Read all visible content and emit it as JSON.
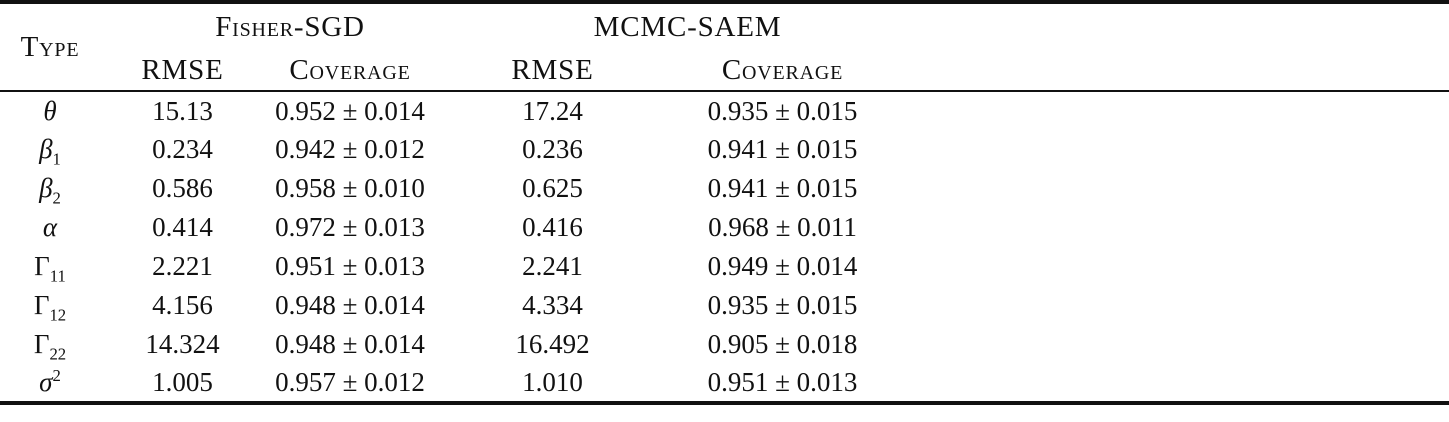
{
  "page": {
    "background": "#ffffff",
    "text_color": "#111111",
    "rule_color": "#111111"
  },
  "table": {
    "header": {
      "type_label": "Type",
      "groups": [
        {
          "label": "Fisher-SGD"
        },
        {
          "label": "MCMC-SAEM"
        }
      ],
      "sub_headers": [
        "RMSE",
        "Coverage",
        "RMSE",
        "Coverage"
      ]
    },
    "rows": [
      {
        "param": {
          "base": "θ",
          "sub": "",
          "sup": ""
        },
        "fisher_rmse": "15.13",
        "fisher_coverage": "0.952 ± 0.014",
        "mcmc_rmse": "17.24",
        "mcmc_coverage": "0.935 ± 0.015"
      },
      {
        "param": {
          "base": "β",
          "sub": "1",
          "sup": ""
        },
        "fisher_rmse": "0.234",
        "fisher_coverage": "0.942 ± 0.012",
        "mcmc_rmse": "0.236",
        "mcmc_coverage": "0.941 ± 0.015"
      },
      {
        "param": {
          "base": "β",
          "sub": "2",
          "sup": ""
        },
        "fisher_rmse": "0.586",
        "fisher_coverage": "0.958 ± 0.010",
        "mcmc_rmse": "0.625",
        "mcmc_coverage": "0.941 ± 0.015"
      },
      {
        "param": {
          "base": "α",
          "sub": "",
          "sup": ""
        },
        "fisher_rmse": "0.414",
        "fisher_coverage": "0.972 ± 0.013",
        "mcmc_rmse": "0.416",
        "mcmc_coverage": "0.968 ± 0.011"
      },
      {
        "param": {
          "base": "Γ",
          "sub": "11",
          "sup": ""
        },
        "fisher_rmse": "2.221",
        "fisher_coverage": "0.951 ± 0.013",
        "mcmc_rmse": "2.241",
        "mcmc_coverage": "0.949 ± 0.014"
      },
      {
        "param": {
          "base": "Γ",
          "sub": "12",
          "sup": ""
        },
        "fisher_rmse": "4.156",
        "fisher_coverage": "0.948 ± 0.014",
        "mcmc_rmse": "4.334",
        "mcmc_coverage": "0.935 ± 0.015"
      },
      {
        "param": {
          "base": "Γ",
          "sub": "22",
          "sup": ""
        },
        "fisher_rmse": "14.324",
        "fisher_coverage": "0.948 ± 0.014",
        "mcmc_rmse": "16.492",
        "mcmc_coverage": "0.905 ± 0.018"
      },
      {
        "param": {
          "base": "σ",
          "sub": "",
          "sup": "2"
        },
        "fisher_rmse": "1.005",
        "fisher_coverage": "0.957 ± 0.012",
        "mcmc_rmse": "1.010",
        "mcmc_coverage": "0.951 ± 0.013"
      }
    ]
  }
}
